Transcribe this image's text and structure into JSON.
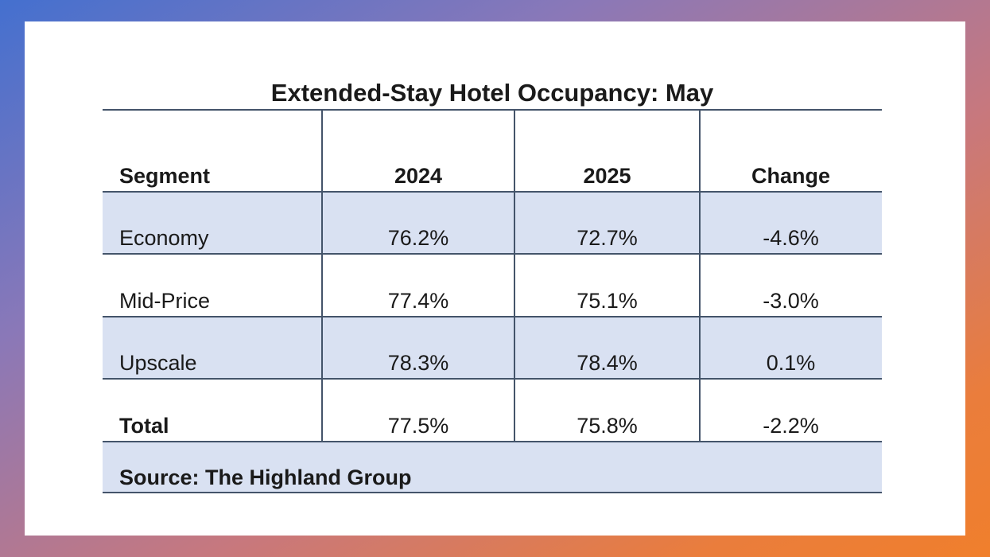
{
  "chart_data": {
    "type": "table",
    "title": "Extended-Stay Hotel Occupancy: May",
    "columns": [
      "Segment",
      "2024",
      "2025",
      "Change"
    ],
    "rows": [
      [
        "Economy",
        "76.2%",
        "72.7%",
        "-4.6%"
      ],
      [
        "Mid-Price",
        "77.4%",
        "75.1%",
        "-3.0%"
      ],
      [
        "Upscale",
        "78.3%",
        "78.4%",
        "0.1%"
      ],
      [
        "Total",
        "77.5%",
        "75.8%",
        "-2.2%"
      ]
    ],
    "source": "Source: The Highland Group"
  },
  "colors": {
    "row_shade": "#d9e1f2",
    "rule": "#44546a"
  }
}
